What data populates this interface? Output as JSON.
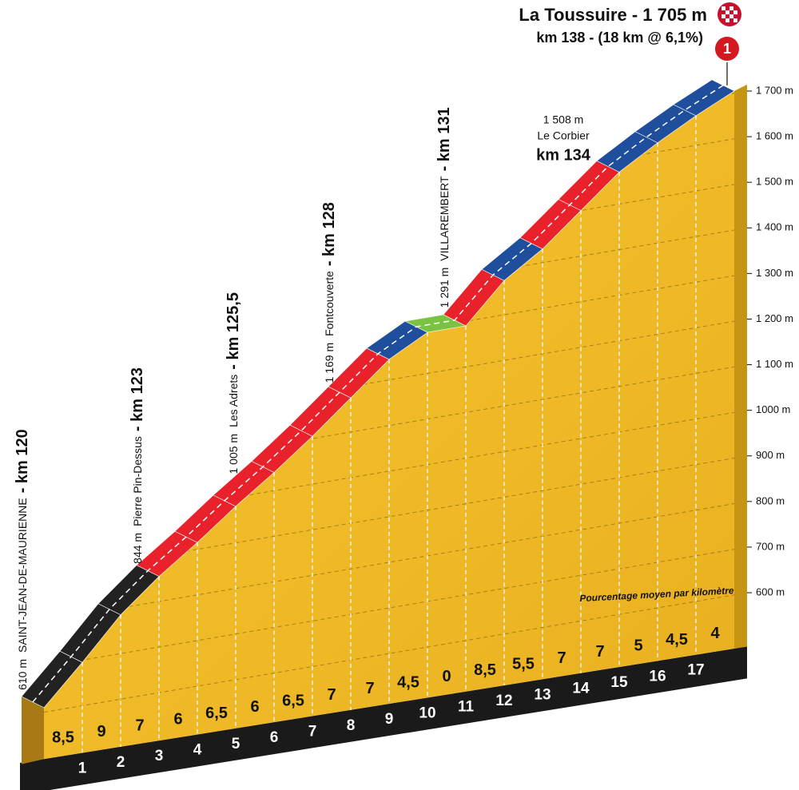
{
  "chart_data": {
    "type": "climb-profile",
    "title": "La Toussuire - 1 705 m",
    "subtitle": "km 138 - (18 km @ 6,1%)",
    "badge": "1",
    "note": "Pourcentage moyen par kilomètre",
    "xlim": [
      0,
      18
    ],
    "xticks": [
      1,
      2,
      3,
      4,
      5,
      6,
      7,
      8,
      9,
      10,
      11,
      12,
      13,
      14,
      15,
      16,
      17
    ],
    "ylim": [
      600,
      1700
    ],
    "yticks": [
      {
        "value": 1700,
        "label": "1 700 m"
      },
      {
        "value": 1600,
        "label": "1 600 m"
      },
      {
        "value": 1500,
        "label": "1 500 m"
      },
      {
        "value": 1400,
        "label": "1 400 m"
      },
      {
        "value": 1300,
        "label": "1 300 m"
      },
      {
        "value": 1200,
        "label": "1 200 m"
      },
      {
        "value": 1100,
        "label": "1 100 m"
      },
      {
        "value": 1000,
        "label": "1000 m"
      },
      {
        "value": 900,
        "label": "900 m"
      },
      {
        "value": 800,
        "label": "800 m"
      },
      {
        "value": 700,
        "label": "700 m"
      },
      {
        "value": 600,
        "label": "600 m"
      }
    ],
    "gradients": [
      8.5,
      9,
      7,
      6,
      6.5,
      6,
      6.5,
      7,
      7,
      4.5,
      0,
      8.5,
      5.5,
      7,
      7,
      5,
      4.5,
      4
    ],
    "value_labels": [
      "8,5",
      "9",
      "7",
      "6",
      "6,5",
      "6",
      "6,5",
      "7",
      "7",
      "4,5",
      "0",
      "8,5",
      "5,5",
      "7",
      "7",
      "5",
      "4,5",
      "4"
    ],
    "colors": [
      "#222222",
      "#222222",
      "#222222",
      "#e8212b",
      "#e8212b",
      "#e8212b",
      "#e8212b",
      "#e8212b",
      "#e8212b",
      "#1f4e9c",
      "#7cc242",
      "#e8212b",
      "#1f4e9c",
      "#e8212b",
      "#e8212b",
      "#1f4e9c",
      "#1f4e9c",
      "#1f4e9c"
    ],
    "waypoints": [
      {
        "altitude": 610,
        "altitude_label": "610 m",
        "name": "SAINT-JEAN-DE-MAURIENNE",
        "km": 120,
        "km_label": "- km 120",
        "orientation": "vertical"
      },
      {
        "altitude": 844,
        "altitude_label": "844 m",
        "name": "Pierre Pin-Dessus",
        "km": 123,
        "km_label": "- km 123",
        "orientation": "vertical"
      },
      {
        "altitude": 1005,
        "altitude_label": "1 005 m",
        "name": "Les Adrets",
        "km": 125.5,
        "km_label": "- km 125,5",
        "orientation": "vertical"
      },
      {
        "altitude": 1169,
        "altitude_label": "1 169 m",
        "name": "Fontcouverte",
        "km": 128,
        "km_label": "- km 128",
        "orientation": "vertical"
      },
      {
        "altitude": 1291,
        "altitude_label": "1 291 m",
        "name": "VILLAREMBERT",
        "km": 131,
        "km_label": "- km 131",
        "orientation": "vertical"
      },
      {
        "altitude": 1508,
        "altitude_label": "1 508 m",
        "name": "Le Corbier",
        "km": 134,
        "km_label": "km 134",
        "orientation": "horizontal"
      }
    ]
  }
}
